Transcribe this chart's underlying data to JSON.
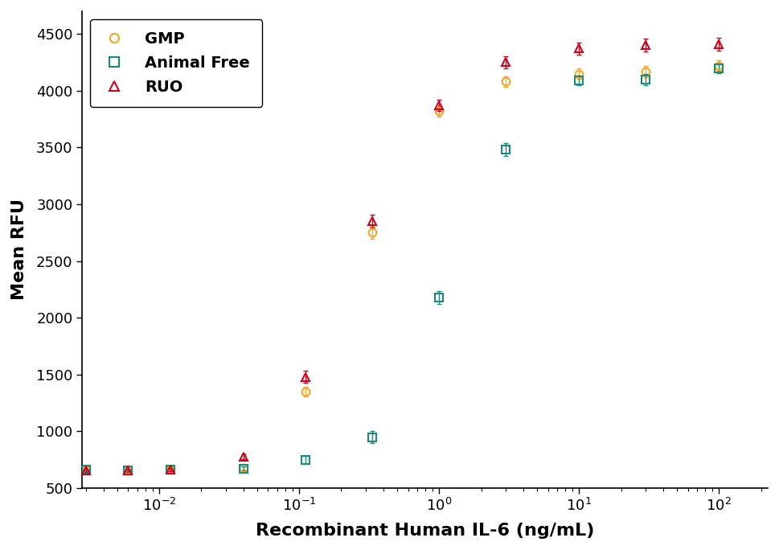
{
  "title": "",
  "xlabel": "Recombinant Human IL-6 (ng/mL)",
  "ylabel": "Mean RFU",
  "ylim": [
    500,
    4700
  ],
  "yticks": [
    500,
    1000,
    1500,
    2000,
    2500,
    3000,
    3500,
    4000,
    4500
  ],
  "background_color": "#ffffff",
  "series": [
    {
      "label": "GMP",
      "color": "#f5a623",
      "marker": "o",
      "x": [
        0.003,
        0.006,
        0.012,
        0.04,
        0.111,
        0.333,
        1.0,
        3.0,
        10.0,
        30.0,
        100.0
      ],
      "y": [
        660,
        660,
        665,
        675,
        1350,
        2750,
        3820,
        4080,
        4150,
        4170,
        4220
      ],
      "yerr": [
        12,
        12,
        12,
        18,
        45,
        55,
        45,
        45,
        45,
        50,
        45
      ]
    },
    {
      "label": "Animal Free",
      "color": "#1a8a7a",
      "marker": "s",
      "x": [
        0.003,
        0.006,
        0.012,
        0.04,
        0.111,
        0.333,
        1.0,
        3.0,
        10.0,
        30.0,
        100.0
      ],
      "y": [
        660,
        658,
        660,
        672,
        750,
        950,
        2180,
        3480,
        4090,
        4100,
        4200
      ],
      "yerr": [
        12,
        12,
        12,
        18,
        35,
        50,
        55,
        55,
        45,
        50,
        45
      ]
    },
    {
      "label": "RUO",
      "color": "#d0021b",
      "marker": "^",
      "x": [
        0.003,
        0.006,
        0.012,
        0.04,
        0.111,
        0.333,
        1.0,
        3.0,
        10.0,
        30.0,
        100.0
      ],
      "y": [
        655,
        655,
        660,
        775,
        1480,
        2850,
        3870,
        4250,
        4370,
        4400,
        4410
      ],
      "yerr": [
        12,
        12,
        12,
        22,
        55,
        55,
        50,
        50,
        55,
        55,
        55
      ]
    }
  ]
}
